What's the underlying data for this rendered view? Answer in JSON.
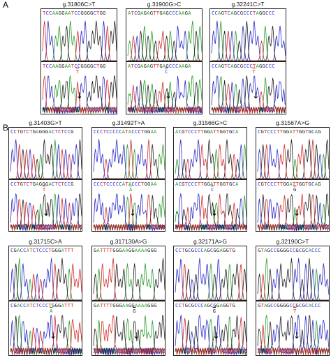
{
  "panels": [
    {
      "letter": "A"
    },
    {
      "letter": "B"
    }
  ],
  "colors": {
    "A": "#2a9d2a",
    "C": "#2b2bcc",
    "G": "#222222",
    "T": "#d42a2a"
  },
  "variants": [
    {
      "label": "g.31806C>T",
      "ref": "TCCAAGGAATCCGGGGCTGG",
      "alt": "TCCAAGGAATCCGGGGCTGG",
      "pos": 9,
      "sub": "T"
    },
    {
      "label": "g.31900G>C",
      "ref": "ATCGAGAGTTGAGCCCAAGA",
      "alt": "ATCGAGAGTTGAGCCCAAGA",
      "pos": 10,
      "sub": "C"
    },
    {
      "label": "g.32241C>T",
      "ref": "CCAGTCAGCGCCCTAGGCCC",
      "alt": "CCAGTCAGCGCCCTAGGCCC",
      "pos": 11,
      "sub": "T"
    },
    {
      "label": "g.31403G>T",
      "ref": "CCTGTCTGAGGGACTCTCCG",
      "alt": "CCTGTCTGAGGGACTCTCCG",
      "pos": 9,
      "sub": "T"
    },
    {
      "label": "g.31492T>A",
      "ref": "CCCTCCCCCATACCCTGGAA",
      "alt": "CCCTCCCCCATACCCTGGAA",
      "pos": 10,
      "sub": "A"
    },
    {
      "label": "g.31566G>C",
      "ref": "ACGTCCCTTGGATTGGTGCA",
      "alt": "ACGTCCCTTGGATTGGTGCA",
      "pos": 10,
      "sub": "C"
    },
    {
      "label": "g.31567A>G",
      "ref": "CGTCCCTTGGATTGGTGCAG",
      "alt": "CGTCCCTTGGATTGGTGCAG",
      "pos": 10,
      "sub": "G"
    },
    {
      "label": "g.31715C>A",
      "ref": "CGACCATCTCCCTGGGATTT",
      "alt": "CGACCATCTCCCTGGGATTT",
      "pos": 11,
      "sub": "A"
    },
    {
      "label": "g.317130A>G",
      "ref": "GATTTTGGGAAGGAAAAGGG",
      "alt": "GATTTTGGGAAGGAAAAGGG",
      "pos": 11,
      "sub": "G"
    },
    {
      "label": "g.32171A>G",
      "ref": "CCTGCGCCCAGCGGAGGTG",
      "alt": "CCTGCGCCCAGCGGAGGTG",
      "pos": 10,
      "sub": "G"
    },
    {
      "label": "g.32190C>T",
      "ref": "GTAGCCGGGGCCGCGCACCC",
      "alt": "GTAGCCGGGGCCGCGCACCC",
      "pos": 10,
      "sub": "T"
    }
  ],
  "marker": "↓"
}
